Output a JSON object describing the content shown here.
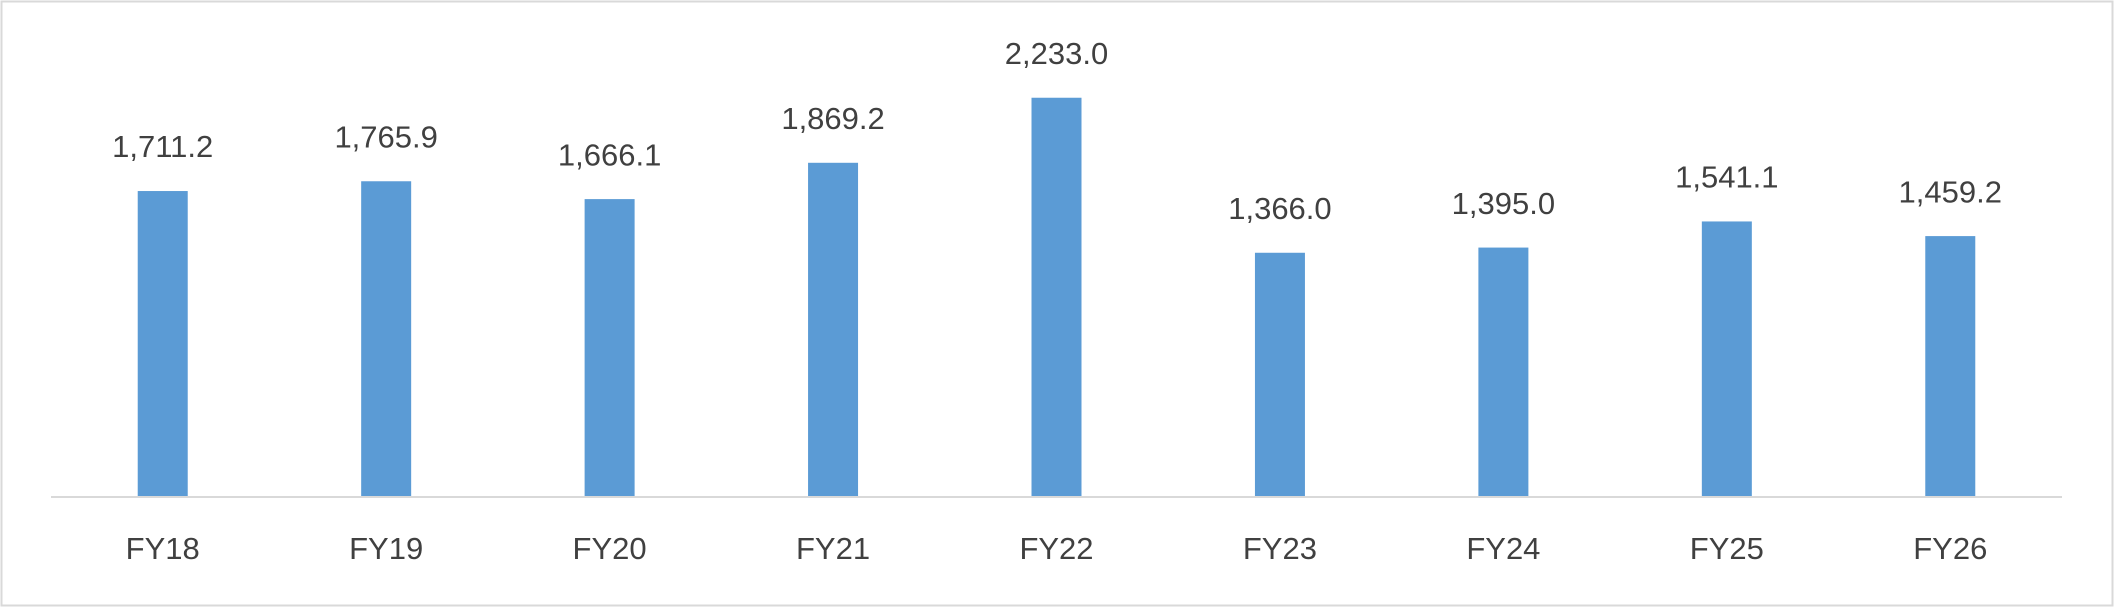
{
  "chart_data": {
    "type": "bar",
    "categories": [
      "FY18",
      "FY19",
      "FY20",
      "FY21",
      "FY22",
      "FY23",
      "FY24",
      "FY25",
      "FY26"
    ],
    "values": [
      1711.2,
      1765.9,
      1666.1,
      1869.2,
      2233.0,
      1366.0,
      1395.0,
      1541.1,
      1459.2
    ],
    "value_labels": [
      "1,711.2",
      "1,765.9",
      "1,666.1",
      "1,869.2",
      "2,233.0",
      "1,366.0",
      "1,395.0",
      "1,541.1",
      "1,459.2"
    ],
    "color": "#5b9bd5",
    "ylim": [
      0,
      2500
    ]
  }
}
